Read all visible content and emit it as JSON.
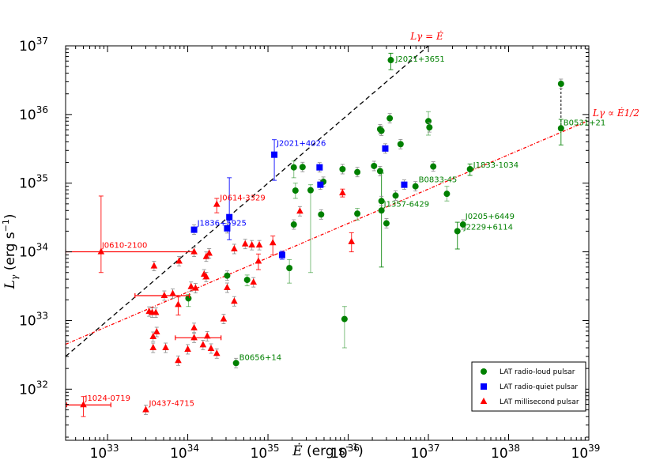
{
  "chart_data": {
    "type": "scatter",
    "title": "",
    "xlabel": "Ė (erg s−1)",
    "ylabel": "Lγ (erg s−1)",
    "xscale": "log",
    "yscale": "log",
    "xlim": [
      3e+32,
      1e+39
    ],
    "ylim": [
      1.8e+31,
      1e+37
    ],
    "x_ticks": [
      {
        "value": 1e+33,
        "base": "10",
        "exp": "33"
      },
      {
        "value": 1e+34,
        "base": "10",
        "exp": "34"
      },
      {
        "value": 1e+35,
        "base": "10",
        "exp": "35"
      },
      {
        "value": 1e+36,
        "base": "10",
        "exp": "36"
      },
      {
        "value": 1e+37,
        "base": "10",
        "exp": "37"
      },
      {
        "value": 1e+38,
        "base": "10",
        "exp": "38"
      },
      {
        "value": 1e+39,
        "base": "10",
        "exp": "39"
      }
    ],
    "y_ticks": [
      {
        "value": 1e+32,
        "base": "10",
        "exp": "32"
      },
      {
        "value": 1e+33,
        "base": "10",
        "exp": "33"
      },
      {
        "value": 1e+34,
        "base": "10",
        "exp": "34"
      },
      {
        "value": 1e+35,
        "base": "10",
        "exp": "35"
      },
      {
        "value": 1e+36,
        "base": "10",
        "exp": "36"
      },
      {
        "value": 1e+37,
        "base": "10",
        "exp": "37"
      }
    ],
    "ref_lines": [
      {
        "name": "L_gamma = Edot",
        "label": "Lγ = Ė",
        "color": "#000000",
        "dash": "6,4",
        "x": [
          3e+32,
          1.2e+37
        ],
        "y": [
          3e+32,
          1.2e+37
        ]
      },
      {
        "name": "L_gamma ~ Edot^1/2",
        "label": "Lγ ∝ Ė1/2",
        "color": "#ff0000",
        "dash": "4,2,1,2",
        "x": [
          3e+32,
          1e+39
        ],
        "y": [
          4.5e+32,
          8.2e+35
        ]
      }
    ],
    "connector": {
      "x": [
        4.5e+38,
        4.5e+38
      ],
      "y": [
        2.8e+36,
        6.3e+35
      ]
    },
    "legend": {
      "position": "lower-right",
      "entries": [
        {
          "label": "LAT radio-loud pulsar",
          "marker": "circle",
          "color": "#008000"
        },
        {
          "label": "LAT radio-quiet pulsar",
          "marker": "square",
          "color": "#0000ff"
        },
        {
          "label": "LAT millisecond pulsar",
          "marker": "triangle",
          "color": "#ff0000"
        }
      ]
    },
    "series": [
      {
        "name": "LAT radio-loud pulsar",
        "marker": "circle",
        "color": "#008000",
        "points": [
          {
            "x": 3.4e+36,
            "y": 6.2e+36,
            "ylo": 4.5e+36,
            "yhi": 7.8e+36,
            "label": "J2021+3651"
          },
          {
            "x": 4.5e+38,
            "y": 2.8e+36
          },
          {
            "x": 4.5e+38,
            "y": 6.3e+35,
            "ylo": 3.6e+35,
            "yhi": 8.5e+35,
            "label": "B0531+21"
          },
          {
            "x": 3.3e+37,
            "y": 1.6e+35,
            "ylo": 1.3e+35,
            "yhi": 1.9e+35,
            "label": "J1833-1034"
          },
          {
            "x": 6.9e+36,
            "y": 9e+34,
            "label": "B0833-45"
          },
          {
            "x": 2.6e+36,
            "y": 4e+34,
            "ylo": 6e+33,
            "yhi": 1.4e+35,
            "label": "J1357-6429"
          },
          {
            "x": 2.7e+37,
            "y": 2.5e+34,
            "label": "J0205+6449"
          },
          {
            "x": 2.3e+37,
            "y": 2e+34,
            "ylo": 1.1e+34,
            "yhi": 2.7e+34,
            "label": "J2229+6114"
          },
          {
            "x": 4e+34,
            "y": 2.4e+32,
            "label": "B0656+14"
          },
          {
            "x": 1e+37,
            "y": 8e+35,
            "ylo": 5e+35,
            "yhi": 1.1e+36
          },
          {
            "x": 1.03e+37,
            "y": 6.5e+35
          },
          {
            "x": 2.5e+36,
            "y": 6.1e+35
          },
          {
            "x": 2.6e+36,
            "y": 5.8e+35
          },
          {
            "x": 3.3e+36,
            "y": 8.8e+35
          },
          {
            "x": 4.5e+36,
            "y": 3.7e+35
          },
          {
            "x": 1.15e+37,
            "y": 1.75e+35
          },
          {
            "x": 2.1e+36,
            "y": 1.78e+35
          },
          {
            "x": 2.5e+36,
            "y": 1.5e+35
          },
          {
            "x": 1.3e+36,
            "y": 1.45e+35
          },
          {
            "x": 8.5e+35,
            "y": 1.6e+35
          },
          {
            "x": 4.9e+35,
            "y": 1.05e+35
          },
          {
            "x": 3.9e+36,
            "y": 6.6e+34
          },
          {
            "x": 2.6e+36,
            "y": 5.5e+34
          },
          {
            "x": 1.7e+37,
            "y": 7e+34,
            "ylo": 5.5e+34,
            "yhi": 9e+34
          },
          {
            "x": 2.1e+35,
            "y": 1.7e+35,
            "ylo": 1.2e+35,
            "yhi": 2.1e+35
          },
          {
            "x": 2.7e+35,
            "y": 1.72e+35
          },
          {
            "x": 2.2e+35,
            "y": 7.8e+34,
            "ylo": 6e+34,
            "yhi": 1e+35
          },
          {
            "x": 3.4e+35,
            "y": 7.9e+34,
            "ylo": 5e+33,
            "yhi": 9.5e+34
          },
          {
            "x": 4.6e+35,
            "y": 3.5e+34
          },
          {
            "x": 2.1e+35,
            "y": 2.5e+34
          },
          {
            "x": 1.3e+36,
            "y": 3.6e+34,
            "ylo": 2.9e+34,
            "yhi": 4.3e+34
          },
          {
            "x": 3e+36,
            "y": 2.6e+34
          },
          {
            "x": 1.85e+35,
            "y": 5.8e+33,
            "ylo": 3.5e+33,
            "yhi": 7.7e+33
          },
          {
            "x": 5.5e+34,
            "y": 3.9e+33,
            "ylo": 3.2e+33,
            "yhi": 4.6e+33
          },
          {
            "x": 3.1e+34,
            "y": 4.5e+33
          },
          {
            "x": 1.02e+34,
            "y": 2.1e+33,
            "ylo": 1.6e+33,
            "yhi": 2.4e+33
          },
          {
            "x": 9e+35,
            "y": 1.05e+33,
            "ylo": 4e+32,
            "yhi": 1.6e+33
          }
        ]
      },
      {
        "name": "LAT radio-quiet pulsar",
        "marker": "square",
        "color": "#0000ff",
        "points": [
          {
            "x": 1.2e+35,
            "y": 2.6e+35,
            "ylo": 1.1e+35,
            "yhi": 4.3e+35,
            "label": "J2021+4026"
          },
          {
            "x": 1.2e+34,
            "y": 2.1e+34,
            "label": "J1836+5925"
          },
          {
            "x": 3.1e+34,
            "y": 2.2e+34
          },
          {
            "x": 3.3e+34,
            "y": 3.2e+34,
            "ylo": 1.5e+34,
            "yhi": 1.2e+35
          },
          {
            "x": 4.4e+35,
            "y": 1.7e+35
          },
          {
            "x": 4.5e+35,
            "y": 9.5e+34
          },
          {
            "x": 2.9e+36,
            "y": 3.2e+35
          },
          {
            "x": 5e+36,
            "y": 9.5e+34
          },
          {
            "x": 1.5e+35,
            "y": 9e+33,
            "ylo": 7.8e+33,
            "yhi": 1.02e+34
          }
        ]
      },
      {
        "name": "LAT millisecond pulsar",
        "marker": "triangle",
        "color": "#ff0000",
        "points": [
          {
            "x": 2.3e+34,
            "y": 4.9e+34,
            "ylo": 3.7e+34,
            "yhi": 6e+34,
            "label": "J0614-3329"
          },
          {
            "x": 8.3e+32,
            "y": 1e+34,
            "ylo": 5e+33,
            "yhi": 6.5e+34,
            "xlo": 3e+32,
            "xhi": 1.2e+34,
            "label": "J0610-2100"
          },
          {
            "x": 5e+32,
            "y": 5.9e+31,
            "ylo": 4e+31,
            "yhi": 7.8e+31,
            "xlo": 3.1e+32,
            "xhi": 1.1e+33,
            "label": "J1024-0719"
          },
          {
            "x": 3e+33,
            "y": 5e+31,
            "label": "J0437-4715"
          },
          {
            "x": 2.5e+35,
            "y": 3.9e+34
          },
          {
            "x": 8.5e+35,
            "y": 7.2e+34,
            "ylo": 6.3e+34,
            "yhi": 8.2e+34
          },
          {
            "x": 1.1e+36,
            "y": 1.4e+34,
            "ylo": 1e+34,
            "yhi": 1.9e+34
          },
          {
            "x": 3.8e+33,
            "y": 6.2e+33
          },
          {
            "x": 7.8e+33,
            "y": 7.3e+33
          },
          {
            "x": 1.2e+34,
            "y": 1e+34
          },
          {
            "x": 1.7e+34,
            "y": 8.5e+33
          },
          {
            "x": 1.85e+34,
            "y": 9.5e+33
          },
          {
            "x": 3.8e+34,
            "y": 1.1e+34
          },
          {
            "x": 5.2e+34,
            "y": 1.3e+34
          },
          {
            "x": 6.3e+34,
            "y": 1.25e+34
          },
          {
            "x": 7.8e+34,
            "y": 1.25e+34
          },
          {
            "x": 1.15e+35,
            "y": 1.35e+34,
            "ylo": 9e+33,
            "yhi": 1.7e+34
          },
          {
            "x": 7.6e+34,
            "y": 7.3e+33,
            "ylo": 5.5e+33,
            "yhi": 9.3e+33
          },
          {
            "x": 1.1e+34,
            "y": 3.1e+33
          },
          {
            "x": 1.25e+34,
            "y": 2.95e+33
          },
          {
            "x": 1.6e+34,
            "y": 4.7e+33
          },
          {
            "x": 1.7e+34,
            "y": 4.3e+33
          },
          {
            "x": 3.1e+34,
            "y": 3e+33
          },
          {
            "x": 3.8e+34,
            "y": 1.9e+33
          },
          {
            "x": 6.6e+34,
            "y": 3.6e+33
          },
          {
            "x": 5.1e+33,
            "y": 2.3e+33,
            "xlo": 2.2e+33,
            "xhi": 1.05e+34
          },
          {
            "x": 6.5e+33,
            "y": 2.45e+33
          },
          {
            "x": 7.6e+33,
            "y": 1.7e+33,
            "ylo": 1.2e+33,
            "yhi": 2.2e+33
          },
          {
            "x": 3.3e+33,
            "y": 1.35e+33
          },
          {
            "x": 3.6e+33,
            "y": 1.3e+33
          },
          {
            "x": 4e+33,
            "y": 1.3e+33
          },
          {
            "x": 2.8e+34,
            "y": 1.05e+33
          },
          {
            "x": 3.7e+33,
            "y": 5.8e+32
          },
          {
            "x": 4.1e+33,
            "y": 6.8e+32
          },
          {
            "x": 3.7e+33,
            "y": 4e+32
          },
          {
            "x": 5.3e+33,
            "y": 4e+32
          },
          {
            "x": 7.6e+33,
            "y": 2.6e+32
          },
          {
            "x": 1e+34,
            "y": 3.8e+32
          },
          {
            "x": 1.2e+34,
            "y": 5.6e+32,
            "xlo": 7e+33,
            "xhi": 2.6e+34
          },
          {
            "x": 1.2e+34,
            "y": 7.8e+32
          },
          {
            "x": 1.55e+34,
            "y": 4.4e+32
          },
          {
            "x": 1.75e+34,
            "y": 5.9e+32
          },
          {
            "x": 2.3e+34,
            "y": 3.3e+32
          },
          {
            "x": 1.95e+34,
            "y": 3.9e+32
          }
        ]
      }
    ]
  }
}
